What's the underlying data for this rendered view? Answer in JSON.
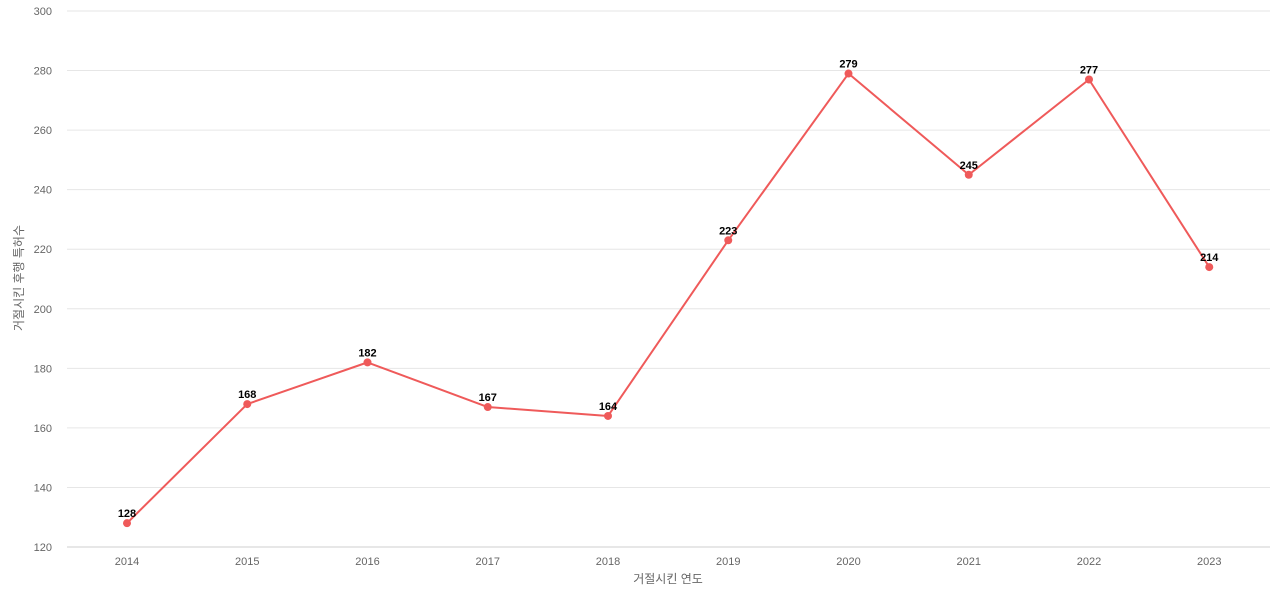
{
  "chart_data": {
    "type": "line",
    "title": "",
    "xlabel": "거절시킨 연도",
    "ylabel": "거절시킨 후행 특허수",
    "categories": [
      "2014",
      "2015",
      "2016",
      "2017",
      "2018",
      "2019",
      "2020",
      "2021",
      "2022",
      "2023"
    ],
    "series": [
      {
        "values": [
          128,
          168,
          182,
          167,
          164,
          223,
          279,
          245,
          277,
          214
        ],
        "color": "#ef5a5a"
      }
    ],
    "ylim": [
      120,
      300
    ],
    "yticks": [
      120,
      140,
      160,
      180,
      200,
      220,
      240,
      260,
      280,
      300
    ],
    "grid": true,
    "legend": "none",
    "data_labels": true
  }
}
